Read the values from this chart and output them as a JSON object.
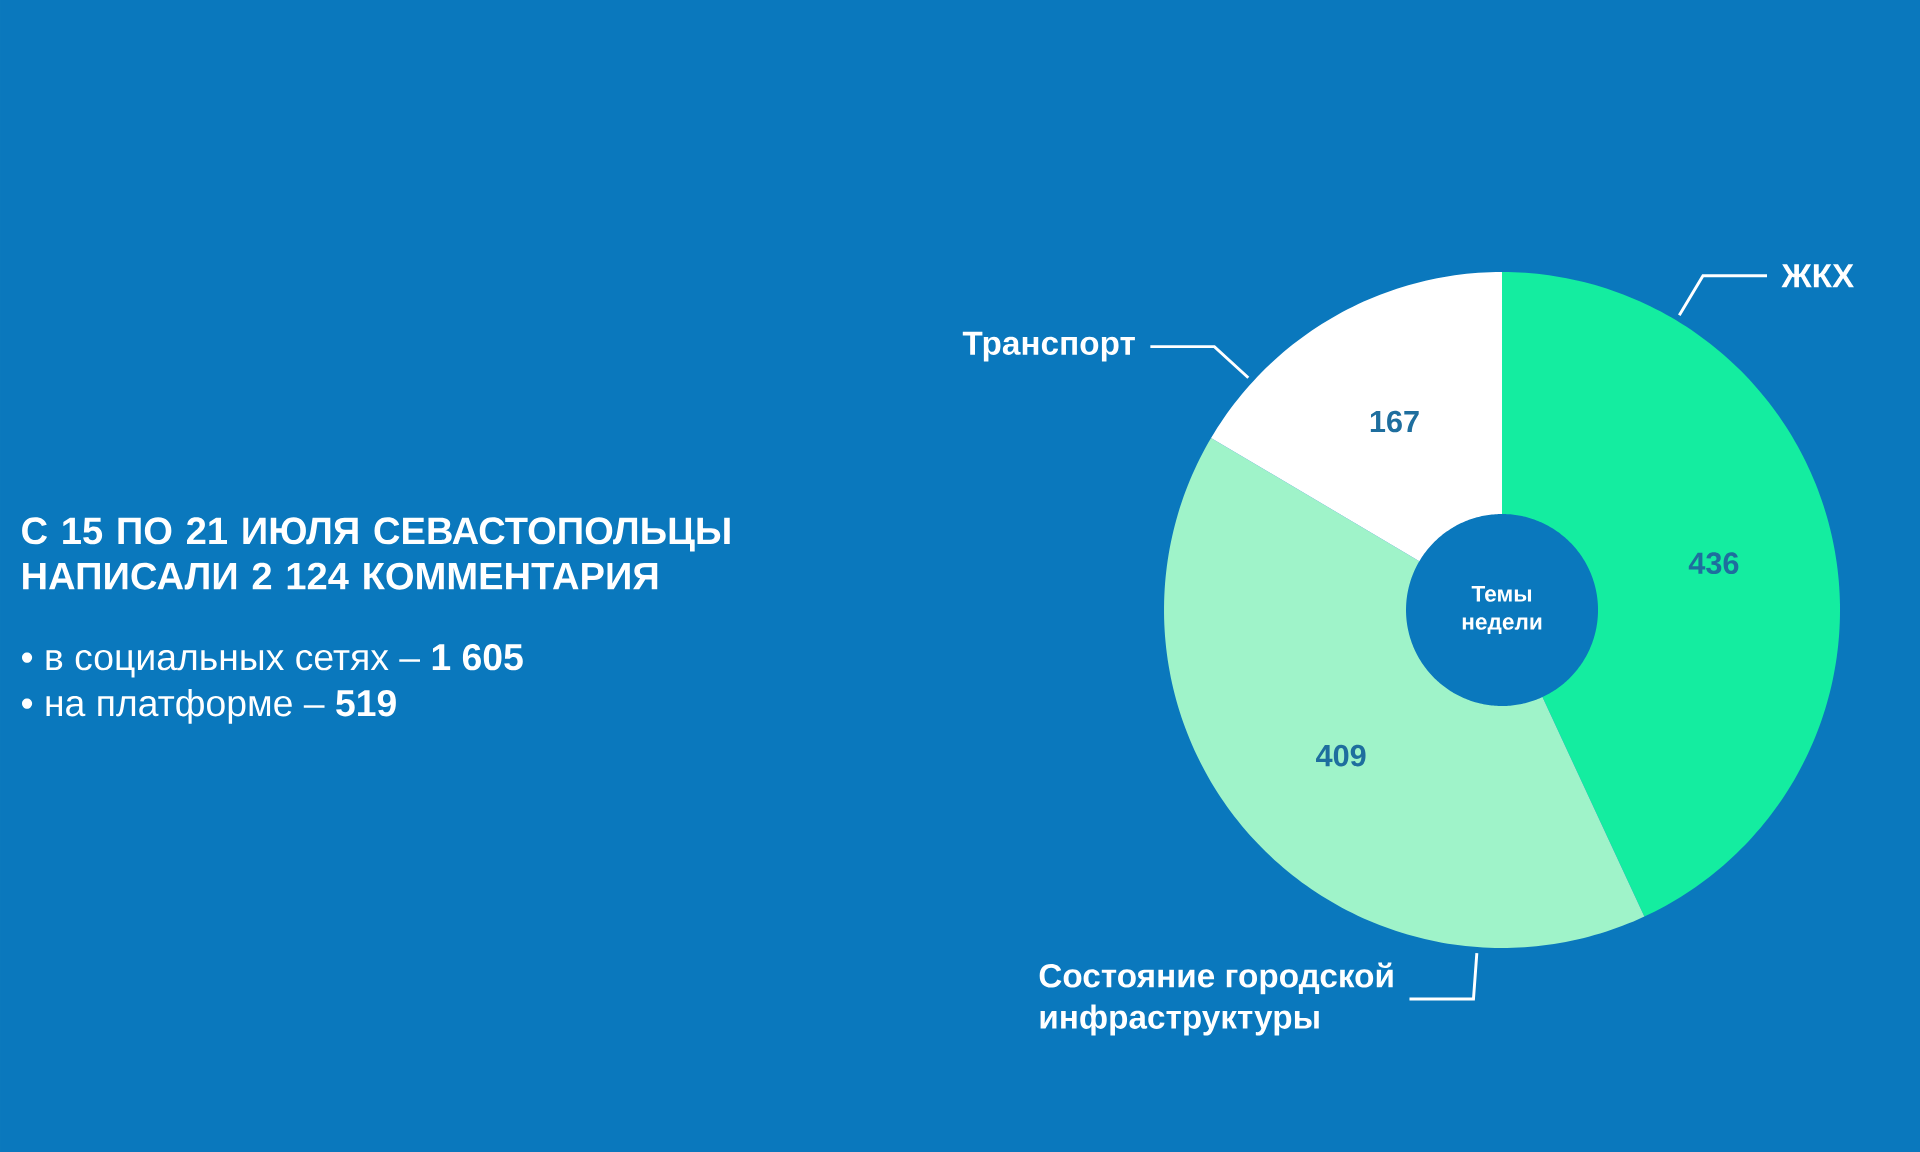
{
  "chart_data": {
    "type": "donut",
    "title": "С 15 ПО 21 ИЮЛЯ СЕВАСТОПОЛЬЦЫ НАПИСАЛИ 2 124 КОММЕНТАРИЯ",
    "subtitle": "Темы недели",
    "categories": [
      "ЖКХ",
      "Состояние городской инфраструктуры",
      "Транспорт"
    ],
    "values": [
      436,
      409,
      167
    ],
    "colors": [
      "#14eda0",
      "#9ff3c9",
      "#ffffff"
    ],
    "data_labels": true,
    "annotations": [
      "• в социальных сетях – **1 605**",
      "• на платформе – **519**"
    ]
  }
}
